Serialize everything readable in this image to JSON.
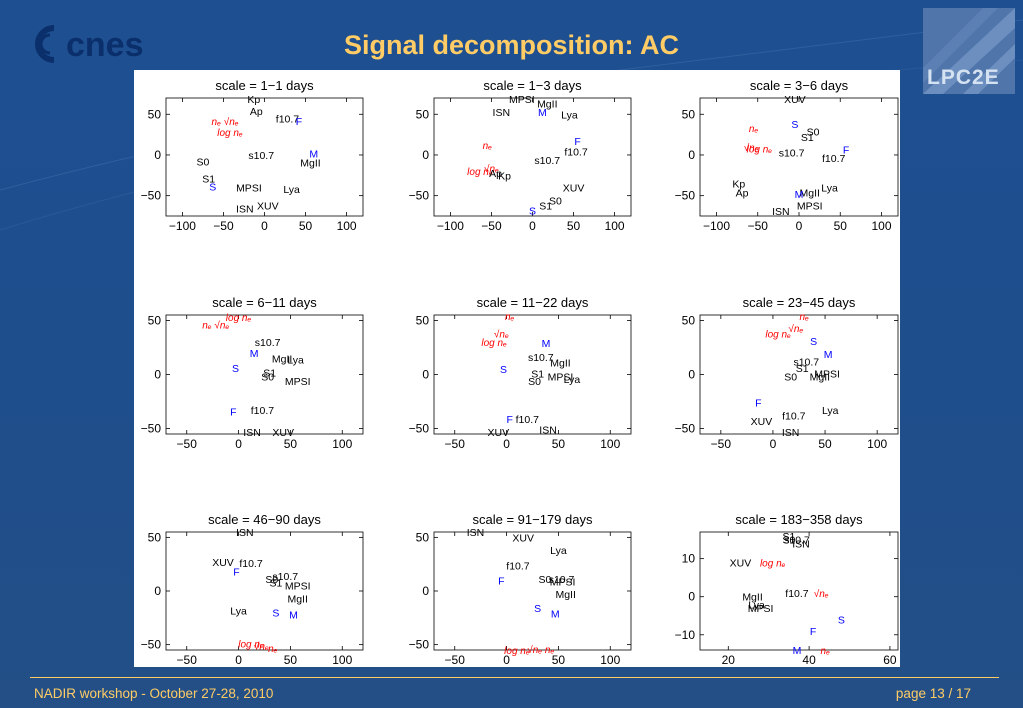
{
  "slide": {
    "title": "Signal decomposition: AC",
    "footer_left": "NADIR workshop  -  October 27-28, 2010",
    "footer_right": "page 13 / 17",
    "logo_left": "cnes",
    "logo_right": "LPC2E"
  },
  "colors": {
    "background": "#1f4e8c",
    "title": "#ffcc66",
    "black_label": "#000000",
    "blue_label": "#0000ff",
    "red_label": "#ff0000"
  },
  "chart_data": [
    {
      "type": "scatter",
      "title": "scale = 1−1 days",
      "xlim": [
        -120,
        120
      ],
      "ylim": [
        -75,
        70
      ],
      "xticks": [
        -100,
        -50,
        0,
        50,
        100
      ],
      "yticks": [
        -50,
        0,
        50
      ],
      "points": [
        {
          "label": "Kp",
          "x": -13,
          "y": 69,
          "color": "black"
        },
        {
          "label": "Ap",
          "x": -10,
          "y": 54,
          "color": "black"
        },
        {
          "label": "f10.7",
          "x": 28,
          "y": 45,
          "color": "black"
        },
        {
          "label": "F",
          "x": 42,
          "y": 42,
          "color": "blue"
        },
        {
          "label": "n_e sqrt(n_e)",
          "x": -48,
          "y": 42,
          "color": "red"
        },
        {
          "label": "log n_e",
          "x": -42,
          "y": 28,
          "color": "red"
        },
        {
          "label": "S0",
          "x": -75,
          "y": -8,
          "color": "black"
        },
        {
          "label": "s10.7",
          "x": -4,
          "y": 0,
          "color": "black"
        },
        {
          "label": "M",
          "x": 60,
          "y": 2,
          "color": "blue"
        },
        {
          "label": "MgII",
          "x": 56,
          "y": -9,
          "color": "black"
        },
        {
          "label": "S1",
          "x": -68,
          "y": -29,
          "color": "black"
        },
        {
          "label": "S",
          "x": -63,
          "y": -39,
          "color": "blue"
        },
        {
          "label": "MPSI",
          "x": -19,
          "y": -40,
          "color": "black"
        },
        {
          "label": "Lya",
          "x": 33,
          "y": -42,
          "color": "black"
        },
        {
          "label": "XUV",
          "x": 4,
          "y": -62,
          "color": "black"
        },
        {
          "label": "ISN",
          "x": -24,
          "y": -66,
          "color": "black"
        }
      ]
    },
    {
      "type": "scatter",
      "title": "scale = 1−3 days",
      "xlim": [
        -120,
        120
      ],
      "ylim": [
        -75,
        70
      ],
      "xticks": [
        -100,
        -50,
        0,
        50,
        100
      ],
      "yticks": [
        -50,
        0,
        50
      ],
      "points": [
        {
          "label": "MPSI",
          "x": -13,
          "y": 69,
          "color": "black"
        },
        {
          "label": "MgII",
          "x": 18,
          "y": 63,
          "color": "black"
        },
        {
          "label": "ISN",
          "x": -38,
          "y": 53,
          "color": "black"
        },
        {
          "label": "M",
          "x": 12,
          "y": 53,
          "color": "blue"
        },
        {
          "label": "Lya",
          "x": 45,
          "y": 50,
          "color": "black"
        },
        {
          "label": "F",
          "x": 55,
          "y": 17,
          "color": "blue"
        },
        {
          "label": "n_e",
          "x": -55,
          "y": 12,
          "color": "red"
        },
        {
          "label": "f10.7",
          "x": 53,
          "y": 4,
          "color": "black"
        },
        {
          "label": "s10.7",
          "x": 18,
          "y": -6,
          "color": "black"
        },
        {
          "label": "log n_e",
          "x": -64,
          "y": -20,
          "color": "red"
        },
        {
          "label": "sqrt(n_e)",
          "x": -50,
          "y": -16,
          "color": "red"
        },
        {
          "label": "Ap",
          "x": -45,
          "y": -22,
          "color": "black"
        },
        {
          "label": "Kp",
          "x": -34,
          "y": -25,
          "color": "black"
        },
        {
          "label": "XUV",
          "x": 50,
          "y": -40,
          "color": "black"
        },
        {
          "label": "S0",
          "x": 28,
          "y": -56,
          "color": "black"
        },
        {
          "label": "S1",
          "x": 16,
          "y": -62,
          "color": "black"
        },
        {
          "label": "S",
          "x": 0,
          "y": -68,
          "color": "blue"
        }
      ]
    },
    {
      "type": "scatter",
      "title": "scale = 3−6 days",
      "xlim": [
        -120,
        120
      ],
      "ylim": [
        -75,
        70
      ],
      "xticks": [
        -100,
        -50,
        0,
        50,
        100
      ],
      "yticks": [
        -50,
        0,
        50
      ],
      "points": [
        {
          "label": "XUV",
          "x": -5,
          "y": 69,
          "color": "black"
        },
        {
          "label": "S",
          "x": -5,
          "y": 38,
          "color": "blue"
        },
        {
          "label": "n_e",
          "x": -55,
          "y": 33,
          "color": "red"
        },
        {
          "label": "S0",
          "x": 17,
          "y": 29,
          "color": "black"
        },
        {
          "label": "S1",
          "x": 10,
          "y": 22,
          "color": "black"
        },
        {
          "label": "sqrt(n_e)",
          "x": -58,
          "y": 10,
          "color": "red"
        },
        {
          "label": "log n_e",
          "x": -48,
          "y": 8,
          "color": "red"
        },
        {
          "label": "F",
          "x": 57,
          "y": 7,
          "color": "blue"
        },
        {
          "label": "s10.7",
          "x": -9,
          "y": 3,
          "color": "black"
        },
        {
          "label": "f10.7",
          "x": 42,
          "y": -4,
          "color": "black"
        },
        {
          "label": "Kp",
          "x": -73,
          "y": -35,
          "color": "black"
        },
        {
          "label": "Ap",
          "x": -69,
          "y": -46,
          "color": "black"
        },
        {
          "label": "Lya",
          "x": 37,
          "y": -40,
          "color": "black"
        },
        {
          "label": "MgII",
          "x": 13,
          "y": -46,
          "color": "black"
        },
        {
          "label": "M",
          "x": 0,
          "y": -48,
          "color": "blue"
        },
        {
          "label": "MPSI",
          "x": 13,
          "y": -62,
          "color": "black"
        },
        {
          "label": "ISN",
          "x": -22,
          "y": -69,
          "color": "black"
        }
      ]
    },
    {
      "type": "scatter",
      "title": "scale = 6−11 days",
      "xlim": [
        -70,
        120
      ],
      "ylim": [
        -55,
        55
      ],
      "xticks": [
        -50,
        0,
        50,
        100
      ],
      "yticks": [
        -50,
        0,
        50
      ],
      "points": [
        {
          "label": "log n_e",
          "x": 0,
          "y": 53,
          "color": "red"
        },
        {
          "label": "n_e sqrt(n_e)",
          "x": -22,
          "y": 46,
          "color": "red"
        },
        {
          "label": "s10.7",
          "x": 28,
          "y": 30,
          "color": "black"
        },
        {
          "label": "M",
          "x": 15,
          "y": 20,
          "color": "blue"
        },
        {
          "label": "MgII",
          "x": 42,
          "y": 15,
          "color": "black"
        },
        {
          "label": "Lya",
          "x": 55,
          "y": 14,
          "color": "black"
        },
        {
          "label": "S",
          "x": -3,
          "y": 6,
          "color": "blue"
        },
        {
          "label": "S1",
          "x": 30,
          "y": 2,
          "color": "black"
        },
        {
          "label": "S0",
          "x": 28,
          "y": -2,
          "color": "black"
        },
        {
          "label": "MPSI",
          "x": 57,
          "y": -6,
          "color": "black"
        },
        {
          "label": "F",
          "x": -5,
          "y": -34,
          "color": "blue"
        },
        {
          "label": "f10.7",
          "x": 23,
          "y": -33,
          "color": "black"
        },
        {
          "label": "ISN",
          "x": 13,
          "y": -53,
          "color": "black"
        },
        {
          "label": "XUV",
          "x": 43,
          "y": -53,
          "color": "black"
        }
      ]
    },
    {
      "type": "scatter",
      "title": "scale = 11−22 days",
      "xlim": [
        -70,
        120
      ],
      "ylim": [
        -55,
        55
      ],
      "xticks": [
        -50,
        0,
        50,
        100
      ],
      "yticks": [
        -50,
        0,
        50
      ],
      "points": [
        {
          "label": "n_e",
          "x": 3,
          "y": 54,
          "color": "red"
        },
        {
          "label": "sqrt(n_e)",
          "x": -5,
          "y": 38,
          "color": "red"
        },
        {
          "label": "log n_e",
          "x": -12,
          "y": 30,
          "color": "red"
        },
        {
          "label": "M",
          "x": 38,
          "y": 29,
          "color": "blue"
        },
        {
          "label": "s10.7",
          "x": 33,
          "y": 16,
          "color": "black"
        },
        {
          "label": "MgII",
          "x": 52,
          "y": 11,
          "color": "black"
        },
        {
          "label": "S",
          "x": -3,
          "y": 5,
          "color": "blue"
        },
        {
          "label": "S1",
          "x": 30,
          "y": 1,
          "color": "black"
        },
        {
          "label": "MPSI",
          "x": 52,
          "y": -2,
          "color": "black"
        },
        {
          "label": "Lya",
          "x": 63,
          "y": -4,
          "color": "black"
        },
        {
          "label": "S0",
          "x": 27,
          "y": -6,
          "color": "black"
        },
        {
          "label": "F",
          "x": 3,
          "y": -41,
          "color": "blue"
        },
        {
          "label": "f10.7",
          "x": 20,
          "y": -41,
          "color": "black"
        },
        {
          "label": "ISN",
          "x": 40,
          "y": -51,
          "color": "black"
        },
        {
          "label": "XUV",
          "x": -8,
          "y": -53,
          "color": "black"
        }
      ]
    },
    {
      "type": "scatter",
      "title": "scale = 23−45 days",
      "xlim": [
        -70,
        120
      ],
      "ylim": [
        -55,
        55
      ],
      "xticks": [
        -50,
        0,
        50,
        100
      ],
      "yticks": [
        -50,
        0,
        50
      ],
      "points": [
        {
          "label": "n_e",
          "x": 30,
          "y": 54,
          "color": "red"
        },
        {
          "label": "sqrt(n_e)",
          "x": 22,
          "y": 43,
          "color": "red"
        },
        {
          "label": "log n_e",
          "x": 5,
          "y": 38,
          "color": "red"
        },
        {
          "label": "S",
          "x": 39,
          "y": 31,
          "color": "blue"
        },
        {
          "label": "M",
          "x": 53,
          "y": 19,
          "color": "blue"
        },
        {
          "label": "s10.7",
          "x": 32,
          "y": 12,
          "color": "black"
        },
        {
          "label": "S1",
          "x": 28,
          "y": 6,
          "color": "black"
        },
        {
          "label": "MPSI",
          "x": 52,
          "y": 1,
          "color": "black"
        },
        {
          "label": "S0",
          "x": 17,
          "y": -2,
          "color": "black"
        },
        {
          "label": "MgII",
          "x": 45,
          "y": -2,
          "color": "black"
        },
        {
          "label": "F",
          "x": -14,
          "y": -26,
          "color": "blue"
        },
        {
          "label": "f10.7",
          "x": 20,
          "y": -38,
          "color": "black"
        },
        {
          "label": "Lya",
          "x": 55,
          "y": -33,
          "color": "black"
        },
        {
          "label": "XUV",
          "x": -11,
          "y": -43,
          "color": "black"
        },
        {
          "label": "ISN",
          "x": 17,
          "y": -53,
          "color": "black"
        }
      ]
    },
    {
      "type": "scatter",
      "title": "scale = 46−90 days",
      "xlim": [
        -70,
        120
      ],
      "ylim": [
        -55,
        55
      ],
      "xticks": [
        -50,
        0,
        50,
        100
      ],
      "yticks": [
        -50,
        0,
        50
      ],
      "points": [
        {
          "label": "ISN",
          "x": 6,
          "y": 55,
          "color": "black"
        },
        {
          "label": "XUV",
          "x": -15,
          "y": 27,
          "color": "black"
        },
        {
          "label": "f10.7",
          "x": 12,
          "y": 26,
          "color": "black"
        },
        {
          "label": "F",
          "x": -2,
          "y": 18,
          "color": "blue"
        },
        {
          "label": "s10.7",
          "x": 45,
          "y": 14,
          "color": "black"
        },
        {
          "label": "S0",
          "x": 32,
          "y": 11,
          "color": "black"
        },
        {
          "label": "S1",
          "x": 36,
          "y": 8,
          "color": "black"
        },
        {
          "label": "MPSI",
          "x": 57,
          "y": 5,
          "color": "black"
        },
        {
          "label": "MgII",
          "x": 57,
          "y": -7,
          "color": "black"
        },
        {
          "label": "Lya",
          "x": 0,
          "y": -18,
          "color": "black"
        },
        {
          "label": "S",
          "x": 36,
          "y": -20,
          "color": "blue"
        },
        {
          "label": "M",
          "x": 53,
          "y": -22,
          "color": "blue"
        },
        {
          "label": "log n_e",
          "x": 12,
          "y": -49,
          "color": "red"
        },
        {
          "label": "sqrt(n_e)",
          "x": 22,
          "y": -51,
          "color": "red"
        },
        {
          "label": "n_e",
          "x": 33,
          "y": -53,
          "color": "red"
        }
      ]
    },
    {
      "type": "scatter",
      "title": "scale = 91−179 days",
      "xlim": [
        -70,
        120
      ],
      "ylim": [
        -55,
        55
      ],
      "xticks": [
        -50,
        0,
        50,
        100
      ],
      "yticks": [
        -50,
        0,
        50
      ],
      "points": [
        {
          "label": "ISN",
          "x": -30,
          "y": 55,
          "color": "black"
        },
        {
          "label": "XUV",
          "x": 16,
          "y": 50,
          "color": "black"
        },
        {
          "label": "Lya",
          "x": 50,
          "y": 38,
          "color": "black"
        },
        {
          "label": "f10.7",
          "x": 11,
          "y": 24,
          "color": "black"
        },
        {
          "label": "F",
          "x": -5,
          "y": 10,
          "color": "blue"
        },
        {
          "label": "S0",
          "x": 37,
          "y": 11,
          "color": "black"
        },
        {
          "label": "s10.7",
          "x": 53,
          "y": 11,
          "color": "black"
        },
        {
          "label": "MPSI",
          "x": 54,
          "y": 9,
          "color": "black"
        },
        {
          "label": "MgII",
          "x": 57,
          "y": -3,
          "color": "black"
        },
        {
          "label": "S",
          "x": 30,
          "y": -16,
          "color": "blue"
        },
        {
          "label": "M",
          "x": 47,
          "y": -21,
          "color": "blue"
        },
        {
          "label": "log n_e",
          "x": 10,
          "y": -55,
          "color": "red"
        },
        {
          "label": "sqrt(n_e) n_e",
          "x": 33,
          "y": -54,
          "color": "red"
        }
      ]
    },
    {
      "type": "scatter",
      "title": "scale = 183−358 days",
      "xlim": [
        13,
        62
      ],
      "ylim": [
        -14,
        17
      ],
      "xticks": [
        20,
        40,
        60
      ],
      "yticks": [
        -10,
        0,
        10
      ],
      "points": [
        {
          "label": "S1",
          "x": 35,
          "y": 16,
          "color": "black"
        },
        {
          "label": "S0",
          "x": 35,
          "y": 15,
          "color": "black"
        },
        {
          "label": "s10.7",
          "x": 37,
          "y": 15,
          "color": "black"
        },
        {
          "label": "ISN",
          "x": 38,
          "y": 14,
          "color": "black"
        },
        {
          "label": "XUV",
          "x": 23,
          "y": 9,
          "color": "black"
        },
        {
          "label": "log n_e",
          "x": 31,
          "y": 9,
          "color": "red"
        },
        {
          "label": "f10.7",
          "x": 37,
          "y": 1,
          "color": "black"
        },
        {
          "label": "sqrt(n_e)",
          "x": 43,
          "y": 1,
          "color": "red"
        },
        {
          "label": "MgII",
          "x": 26,
          "y": 0,
          "color": "black"
        },
        {
          "label": "Lya",
          "x": 27,
          "y": -2,
          "color": "black"
        },
        {
          "label": "MPSI",
          "x": 28,
          "y": -3,
          "color": "black"
        },
        {
          "label": "S",
          "x": 48,
          "y": -6,
          "color": "blue"
        },
        {
          "label": "F",
          "x": 41,
          "y": -9,
          "color": "blue"
        },
        {
          "label": "M",
          "x": 37,
          "y": -14,
          "color": "blue"
        },
        {
          "label": "n_e",
          "x": 44,
          "y": -14,
          "color": "red"
        }
      ]
    }
  ]
}
